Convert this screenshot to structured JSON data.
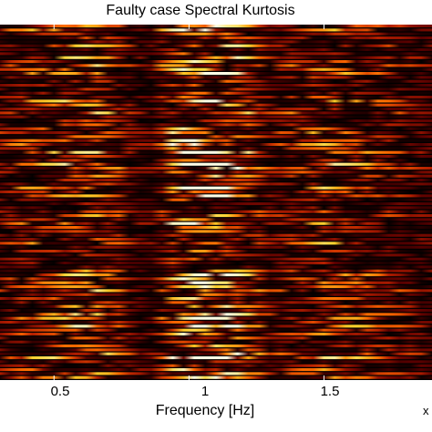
{
  "chart_data": {
    "type": "heatmap",
    "title": "Faulty case Spectral Kurtosis",
    "xlabel": "Frequency [Hz]",
    "ylabel": "",
    "xlim": [
      0.3,
      1.9
    ],
    "x_ticks": [
      {
        "value": 0.5,
        "label": "0.5"
      },
      {
        "value": 1.0,
        "label": "1"
      },
      {
        "value": 1.5,
        "label": "1.5"
      }
    ],
    "colormap": [
      "#000000",
      "#5a0000",
      "#b41e00",
      "#ff6a00",
      "#ffd22a",
      "#ffffe6"
    ],
    "intensity_profile": {
      "x": [
        0.3,
        0.4,
        0.5,
        0.6,
        0.7,
        0.8,
        0.85,
        0.95,
        1.0,
        1.1,
        1.2,
        1.3,
        1.4,
        1.5,
        1.6,
        1.7,
        1.8,
        1.9
      ],
      "level": [
        0.35,
        0.5,
        0.55,
        0.65,
        0.55,
        0.3,
        0.2,
        0.75,
        0.9,
        0.85,
        0.65,
        0.35,
        0.45,
        0.6,
        0.55,
        0.45,
        0.35,
        0.25
      ]
    },
    "rows": 90
  },
  "corner_mark": "x"
}
